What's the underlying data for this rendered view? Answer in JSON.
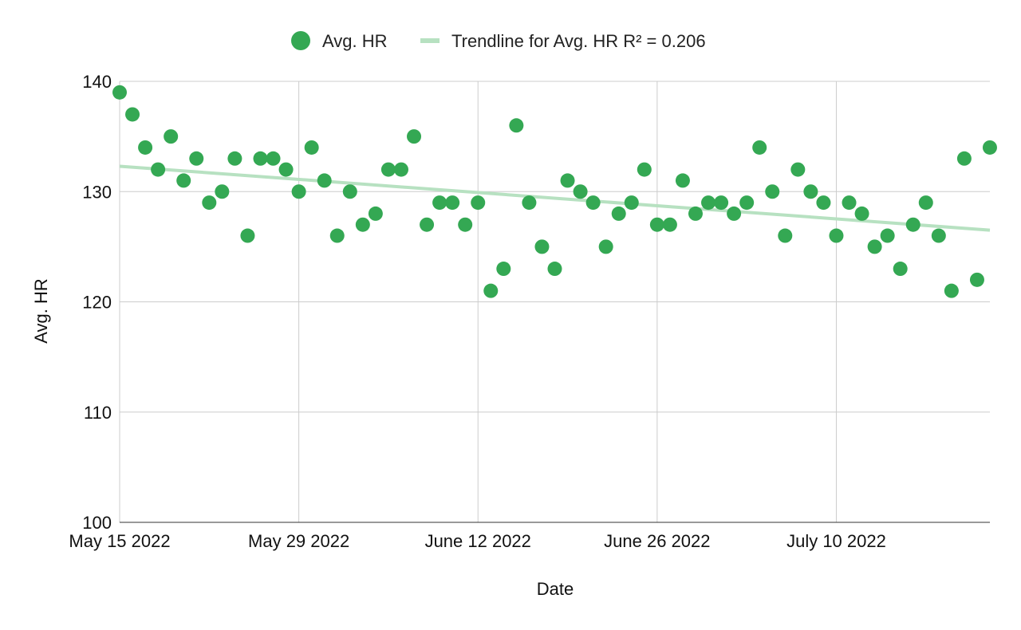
{
  "chart_data": {
    "type": "scatter",
    "xlabel": "Date",
    "ylabel": "Avg. HR",
    "xlim": [
      "2022-05-15",
      "2022-07-22"
    ],
    "ylim": [
      100,
      140
    ],
    "yticks": [
      100,
      110,
      120,
      130,
      140
    ],
    "xticks": [
      {
        "date": "2022-05-15",
        "label": "May 15 2022"
      },
      {
        "date": "2022-05-29",
        "label": "May 29 2022"
      },
      {
        "date": "2022-06-12",
        "label": "June 12 2022"
      },
      {
        "date": "2022-06-26",
        "label": "June 26 2022"
      },
      {
        "date": "2022-07-10",
        "label": "July 10 2022"
      }
    ],
    "grid": true,
    "legend_position": "top-center",
    "legend": [
      {
        "label": "Avg. HR",
        "kind": "marker"
      },
      {
        "label": "Trendline for Avg. HR R² = 0.206",
        "kind": "line"
      }
    ],
    "series": [
      {
        "name": "Avg. HR",
        "color": "#34a853",
        "points": [
          {
            "x": "2022-05-15",
            "y": 139
          },
          {
            "x": "2022-05-16",
            "y": 137
          },
          {
            "x": "2022-05-17",
            "y": 134
          },
          {
            "x": "2022-05-18",
            "y": 132
          },
          {
            "x": "2022-05-19",
            "y": 135
          },
          {
            "x": "2022-05-20",
            "y": 131
          },
          {
            "x": "2022-05-21",
            "y": 133
          },
          {
            "x": "2022-05-22",
            "y": 129
          },
          {
            "x": "2022-05-23",
            "y": 130
          },
          {
            "x": "2022-05-24",
            "y": 133
          },
          {
            "x": "2022-05-25",
            "y": 126
          },
          {
            "x": "2022-05-26",
            "y": 133
          },
          {
            "x": "2022-05-27",
            "y": 133
          },
          {
            "x": "2022-05-28",
            "y": 132
          },
          {
            "x": "2022-05-29",
            "y": 130
          },
          {
            "x": "2022-05-30",
            "y": 134
          },
          {
            "x": "2022-05-31",
            "y": 131
          },
          {
            "x": "2022-06-01",
            "y": 126
          },
          {
            "x": "2022-06-02",
            "y": 130
          },
          {
            "x": "2022-06-03",
            "y": 127
          },
          {
            "x": "2022-06-04",
            "y": 128
          },
          {
            "x": "2022-06-05",
            "y": 132
          },
          {
            "x": "2022-06-06",
            "y": 132
          },
          {
            "x": "2022-06-07",
            "y": 135
          },
          {
            "x": "2022-06-08",
            "y": 127
          },
          {
            "x": "2022-06-09",
            "y": 129
          },
          {
            "x": "2022-06-10",
            "y": 129
          },
          {
            "x": "2022-06-11",
            "y": 127
          },
          {
            "x": "2022-06-12",
            "y": 129
          },
          {
            "x": "2022-06-13",
            "y": 121
          },
          {
            "x": "2022-06-14",
            "y": 123
          },
          {
            "x": "2022-06-15",
            "y": 136
          },
          {
            "x": "2022-06-16",
            "y": 129
          },
          {
            "x": "2022-06-17",
            "y": 125
          },
          {
            "x": "2022-06-18",
            "y": 123
          },
          {
            "x": "2022-06-19",
            "y": 131
          },
          {
            "x": "2022-06-20",
            "y": 130
          },
          {
            "x": "2022-06-21",
            "y": 129
          },
          {
            "x": "2022-06-22",
            "y": 125
          },
          {
            "x": "2022-06-23",
            "y": 128
          },
          {
            "x": "2022-06-24",
            "y": 129
          },
          {
            "x": "2022-06-25",
            "y": 132
          },
          {
            "x": "2022-06-26",
            "y": 127
          },
          {
            "x": "2022-06-27",
            "y": 127
          },
          {
            "x": "2022-06-28",
            "y": 131
          },
          {
            "x": "2022-06-29",
            "y": 128
          },
          {
            "x": "2022-06-30",
            "y": 129
          },
          {
            "x": "2022-07-01",
            "y": 129
          },
          {
            "x": "2022-07-02",
            "y": 128
          },
          {
            "x": "2022-07-03",
            "y": 129
          },
          {
            "x": "2022-07-04",
            "y": 134
          },
          {
            "x": "2022-07-05",
            "y": 130
          },
          {
            "x": "2022-07-06",
            "y": 126
          },
          {
            "x": "2022-07-07",
            "y": 132
          },
          {
            "x": "2022-07-08",
            "y": 130
          },
          {
            "x": "2022-07-09",
            "y": 129
          },
          {
            "x": "2022-07-10",
            "y": 126
          },
          {
            "x": "2022-07-11",
            "y": 129
          },
          {
            "x": "2022-07-12",
            "y": 128
          },
          {
            "x": "2022-07-13",
            "y": 125
          },
          {
            "x": "2022-07-14",
            "y": 126
          },
          {
            "x": "2022-07-15",
            "y": 123
          },
          {
            "x": "2022-07-16",
            "y": 127
          },
          {
            "x": "2022-07-17",
            "y": 129
          },
          {
            "x": "2022-07-18",
            "y": 126
          },
          {
            "x": "2022-07-19",
            "y": 121
          },
          {
            "x": "2022-07-20",
            "y": 133
          },
          {
            "x": "2022-07-21",
            "y": 122
          },
          {
            "x": "2022-07-21",
            "y": 134
          }
        ]
      }
    ],
    "trendline": {
      "name": "Trendline for Avg. HR R² = 0.206",
      "color": "#b7e1c1",
      "start": {
        "x": "2022-05-15",
        "y": 132.3
      },
      "end": {
        "x": "2022-07-22",
        "y": 126.5
      }
    }
  }
}
